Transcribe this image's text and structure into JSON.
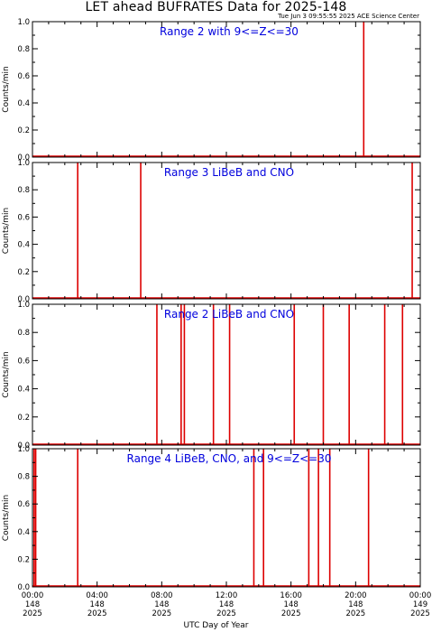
{
  "header": {
    "title": "LET ahead BUFRATES Data for 2025-148",
    "timestamp": "Tue Jun  3 09:55:55 2025 ACE Science Center"
  },
  "chart_data": [
    {
      "type": "line",
      "panel_label": "Range 2 with 9<=Z<=30",
      "ylabel": "Counts/min",
      "ylim": [
        0,
        1
      ],
      "xlim": [
        0,
        24
      ],
      "spikes": [
        20.5
      ]
    },
    {
      "type": "line",
      "panel_label": "Range 3 LiBeB and CNO",
      "ylabel": "Counts/min",
      "ylim": [
        0,
        1
      ],
      "xlim": [
        0,
        24
      ],
      "spikes": [
        2.8,
        6.7,
        23.5
      ]
    },
    {
      "type": "line",
      "panel_label": "Range 2 LiBeB and CNO",
      "ylabel": "Counts/min",
      "ylim": [
        0,
        1
      ],
      "xlim": [
        0,
        24
      ],
      "spikes": [
        7.7,
        9.2,
        9.4,
        11.2,
        12.2,
        16.2,
        18.0,
        19.6,
        21.8,
        22.9
      ]
    },
    {
      "type": "line",
      "panel_label": "Range 4 LiBeB, CNO, and 9<=Z<=30",
      "ylabel": "Counts/min",
      "ylim": [
        0,
        1
      ],
      "xlim": [
        0,
        24
      ],
      "spikes": [
        0.1,
        0.2,
        2.8,
        13.7,
        14.3,
        17.1,
        17.7,
        18.4,
        20.8
      ]
    }
  ],
  "axes": {
    "yticks": [
      "0.0",
      "0.2",
      "0.4",
      "0.6",
      "0.8",
      "1.0"
    ],
    "xticks": [
      {
        "hour": 0,
        "time": "00:00",
        "doy": "148",
        "year": "2025"
      },
      {
        "hour": 4,
        "time": "04:00",
        "doy": "148",
        "year": "2025"
      },
      {
        "hour": 8,
        "time": "08:00",
        "doy": "148",
        "year": "2025"
      },
      {
        "hour": 12,
        "time": "12:00",
        "doy": "148",
        "year": "2025"
      },
      {
        "hour": 16,
        "time": "16:00",
        "doy": "148",
        "year": "2025"
      },
      {
        "hour": 20,
        "time": "20:00",
        "doy": "148",
        "year": "2025"
      },
      {
        "hour": 24,
        "time": "00:00",
        "doy": "149",
        "year": "2025"
      }
    ],
    "xlabel": "UTC Day of Year"
  },
  "colors": {
    "data": "#dd0000",
    "panel_label": "#0000dd",
    "axes": "#000000"
  }
}
